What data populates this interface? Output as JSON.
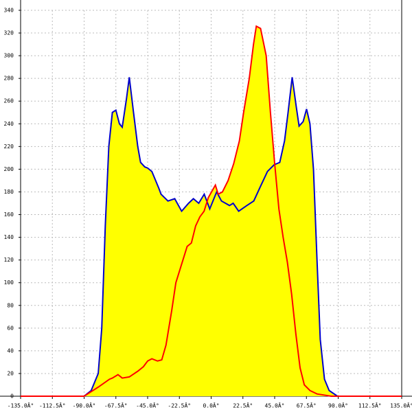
{
  "chart_data": {
    "type": "area",
    "xlim": [
      -135,
      135
    ],
    "ylim": [
      0,
      340
    ],
    "xticks": [
      {
        "value": -135,
        "label": "-135.0Â°"
      },
      {
        "value": -112.5,
        "label": "-112.5Â°"
      },
      {
        "value": -90,
        "label": "-90.0Â°"
      },
      {
        "value": -67.5,
        "label": "-67.5Â°"
      },
      {
        "value": -45,
        "label": "-45.0Â°"
      },
      {
        "value": -22.5,
        "label": "-22.5Â°"
      },
      {
        "value": 0,
        "label": "0.0Â°"
      },
      {
        "value": 22.5,
        "label": "22.5Â°"
      },
      {
        "value": 45,
        "label": "45.0Â°"
      },
      {
        "value": 67.5,
        "label": "67.5Â°"
      },
      {
        "value": 90,
        "label": "90.0Â°"
      },
      {
        "value": 112.5,
        "label": "112.5Â°"
      },
      {
        "value": 135,
        "label": "135.0Â°"
      }
    ],
    "yticks": [
      0,
      20,
      40,
      60,
      80,
      100,
      120,
      140,
      160,
      180,
      200,
      220,
      240,
      260,
      280,
      300,
      320,
      340
    ],
    "grid": true,
    "fill_color": "#ffff00",
    "series": [
      {
        "color": "#0000cc",
        "x": [
          -90,
          -85,
          -80,
          -77.5,
          -75,
          -72.5,
          -70,
          -67.5,
          -65,
          -63,
          -60,
          -58,
          -55,
          -52,
          -50,
          -47,
          -45,
          -42,
          -40,
          -37,
          -35.5,
          -30.6,
          -25.8,
          -20.9,
          -16,
          -12.6,
          -8.8,
          -4.9,
          -1,
          3.9,
          7.3,
          13,
          15.6,
          19.5,
          25.3,
          30.2,
          35,
          39.9,
          44.7,
          48.6,
          52,
          54.5,
          57.4,
          60.3,
          62.3,
          65.2,
          67.6,
          70,
          72.5,
          75,
          77.3,
          80.3,
          83.6,
          89.5
        ],
        "values": [
          0,
          5,
          20,
          60,
          150,
          220,
          250,
          252,
          240,
          237,
          262,
          281,
          250,
          220,
          206,
          202,
          201,
          198,
          192,
          183,
          178,
          172,
          174,
          163,
          170,
          174,
          170,
          178,
          165,
          180,
          172,
          168,
          170,
          163,
          168,
          172,
          185,
          198,
          204,
          206,
          225,
          250,
          281,
          255,
          238,
          242,
          253,
          240,
          200,
          120,
          50,
          15,
          5,
          0
        ]
      },
      {
        "color": "#ff0000",
        "x": [
          -135,
          -90,
          -80,
          -72,
          -70,
          -66,
          -63,
          -58,
          -52,
          -48,
          -45,
          -42,
          -38,
          -35,
          -32,
          -28,
          -25,
          -20,
          -17,
          -14,
          -11,
          -8,
          -5,
          -2,
          3,
          5,
          8,
          12,
          16,
          20,
          23,
          27,
          30,
          32,
          35,
          39,
          42,
          45,
          48,
          51,
          54,
          57,
          60,
          63,
          66,
          70,
          75,
          85,
          135
        ],
        "values": [
          0,
          0,
          8,
          15,
          16,
          19,
          16,
          17,
          22,
          26,
          31,
          33,
          31,
          32,
          45,
          75,
          100,
          120,
          132,
          135,
          150,
          158,
          163,
          175,
          186,
          178,
          180,
          190,
          205,
          225,
          250,
          280,
          310,
          326,
          324,
          300,
          250,
          205,
          165,
          140,
          118,
          90,
          55,
          25,
          10,
          5,
          2,
          0,
          0
        ]
      }
    ]
  }
}
